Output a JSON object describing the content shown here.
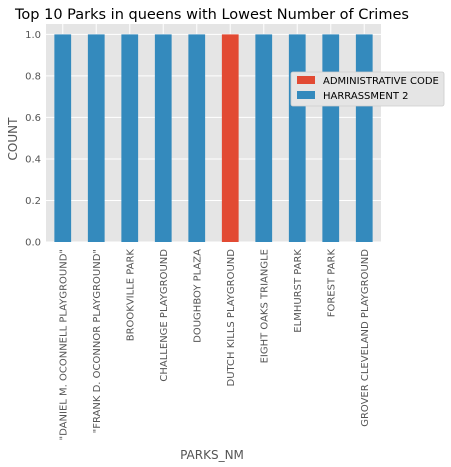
{
  "chart_data": {
    "type": "bar",
    "stacked": true,
    "title": "Top 10 Parks in queens with Lowest Number of Crimes",
    "xlabel": "PARKS_NM",
    "ylabel": "COUNT",
    "ylim": [
      0,
      1.05
    ],
    "yticks": [
      "0.0",
      "0.2",
      "0.4",
      "0.6",
      "0.8",
      "1.0"
    ],
    "grid": true,
    "legend_position": "right",
    "categories": [
      "\"DANIEL M. OCONNELL PLAYGROUND\"",
      "\"FRANK D. OCONNOR PLAYGROUND\"",
      "BROOKVILLE PARK",
      "CHALLENGE PLAYGROUND",
      "DOUGHBOY PLAZA",
      "DUTCH KILLS PLAYGROUND",
      "EIGHT OAKS TRIANGLE",
      "ELMHURST PARK",
      "FOREST PARK",
      "GROVER CLEVELAND PLAYGROUND"
    ],
    "series": [
      {
        "name": "ADMINISTRATIVE CODE",
        "color": "#E24A33",
        "values": [
          0,
          0,
          0,
          0,
          0,
          1,
          0,
          0,
          0,
          0
        ]
      },
      {
        "name": "HARRASSMENT 2",
        "color": "#348ABD",
        "values": [
          1,
          1,
          1,
          1,
          1,
          0,
          1,
          1,
          1,
          1
        ]
      }
    ]
  }
}
